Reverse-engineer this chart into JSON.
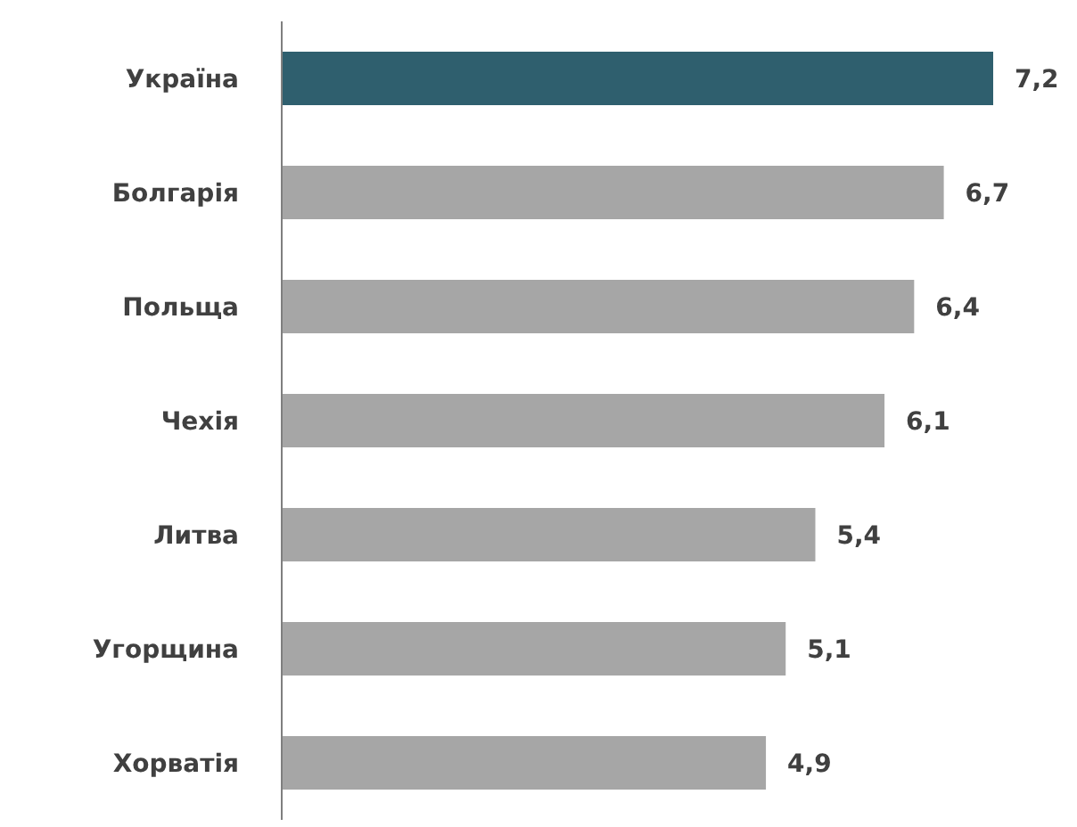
{
  "chart_data": {
    "type": "bar",
    "orientation": "horizontal",
    "categories": [
      "Україна",
      "Болгарія",
      "Польща",
      "Чехія",
      "Литва",
      "Угорщина",
      "Хорватія"
    ],
    "values": [
      7.2,
      6.7,
      6.4,
      6.1,
      5.4,
      5.1,
      4.9
    ],
    "value_labels": [
      "7,2",
      "6,7",
      "6,4",
      "6,1",
      "5,4",
      "5,1",
      "4,9"
    ],
    "colors": [
      "#2f5f6e",
      "#a6a6a6",
      "#a6a6a6",
      "#a6a6a6",
      "#a6a6a6",
      "#a6a6a6",
      "#a6a6a6"
    ],
    "grid": false
  }
}
